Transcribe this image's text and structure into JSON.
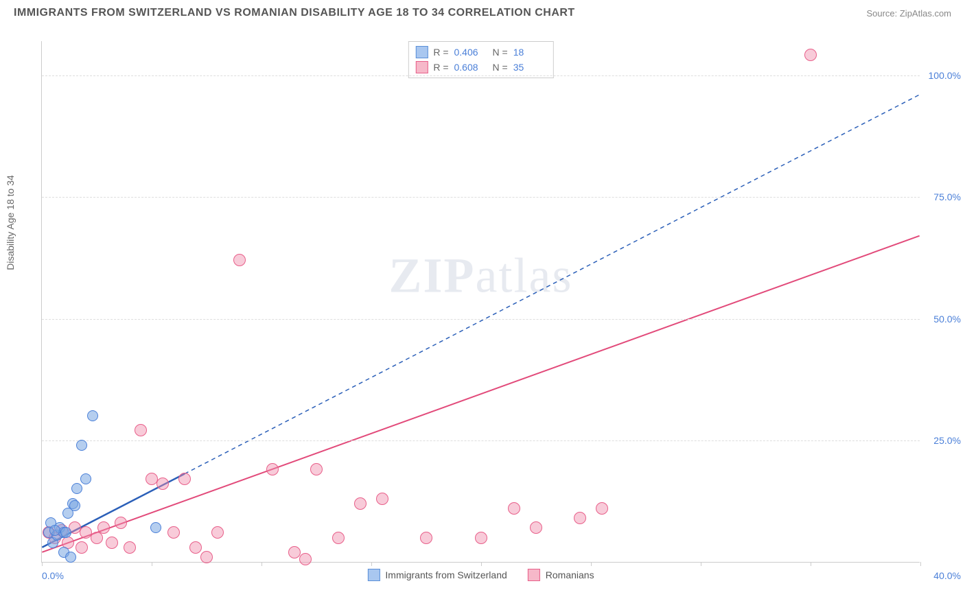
{
  "title": "IMMIGRANTS FROM SWITZERLAND VS ROMANIAN DISABILITY AGE 18 TO 34 CORRELATION CHART",
  "source": "Source: ZipAtlas.com",
  "ylabel": "Disability Age 18 to 34",
  "watermark_a": "ZIP",
  "watermark_b": "atlas",
  "axes": {
    "xlim": [
      0,
      40
    ],
    "ylim": [
      0,
      107
    ],
    "yticks": [
      25,
      50,
      75,
      100
    ],
    "ytick_labels": [
      "25.0%",
      "50.0%",
      "75.0%",
      "100.0%"
    ],
    "xtick_positions": [
      0,
      5,
      10,
      15,
      20,
      25,
      30,
      35,
      40
    ],
    "x_left_label": "0.0%",
    "x_right_label": "40.0%",
    "grid_color": "#dddddd",
    "axis_color": "#cccccc",
    "tick_label_color": "#4a7fd8"
  },
  "legend_top": {
    "rows": [
      {
        "swatch_fill": "#a9c7f0",
        "swatch_border": "#5a8fd8",
        "r_label": "R =",
        "r_val": "0.406",
        "n_label": "N =",
        "n_val": "18"
      },
      {
        "swatch_fill": "#f6b8c9",
        "swatch_border": "#e85e89",
        "r_label": "R =",
        "r_val": "0.608",
        "n_label": "N =",
        "n_val": "35"
      }
    ]
  },
  "legend_bottom": {
    "items": [
      {
        "swatch_fill": "#a9c7f0",
        "swatch_border": "#5a8fd8",
        "label": "Immigrants from Switzerland"
      },
      {
        "swatch_fill": "#f6b8c9",
        "swatch_border": "#e85e89",
        "label": "Romanians"
      }
    ]
  },
  "series": {
    "blue": {
      "fill": "rgba(120,165,225,0.55)",
      "stroke": "#4a7fd8",
      "radius": 8,
      "points": [
        [
          0.3,
          6
        ],
        [
          0.5,
          4
        ],
        [
          0.7,
          5.5
        ],
        [
          0.8,
          7
        ],
        [
          1.0,
          6
        ],
        [
          1.2,
          10
        ],
        [
          1.4,
          12
        ],
        [
          1.6,
          15
        ],
        [
          1.8,
          24
        ],
        [
          2.0,
          17
        ],
        [
          2.3,
          30
        ],
        [
          1.0,
          2
        ],
        [
          1.3,
          1
        ],
        [
          0.4,
          8
        ],
        [
          0.6,
          6.5
        ],
        [
          1.1,
          6
        ],
        [
          1.5,
          11.5
        ],
        [
          5.2,
          7
        ]
      ],
      "trend": {
        "color": "#2b5fb8",
        "solid_to_x": 6.5,
        "y0": 3,
        "y_at_40": 96,
        "dash": "6,5",
        "width": 2
      }
    },
    "pink": {
      "fill": "rgba(240,140,170,0.45)",
      "stroke": "#e85e89",
      "radius": 9,
      "points": [
        [
          0.3,
          6
        ],
        [
          0.6,
          5
        ],
        [
          0.9,
          6.5
        ],
        [
          1.2,
          4
        ],
        [
          1.5,
          7
        ],
        [
          1.8,
          3
        ],
        [
          2.0,
          6
        ],
        [
          2.5,
          5
        ],
        [
          2.8,
          7
        ],
        [
          3.2,
          4
        ],
        [
          3.6,
          8
        ],
        [
          4.0,
          3
        ],
        [
          4.5,
          27
        ],
        [
          5.0,
          17
        ],
        [
          5.5,
          16
        ],
        [
          6.0,
          6
        ],
        [
          6.5,
          17
        ],
        [
          7.0,
          3
        ],
        [
          7.5,
          1
        ],
        [
          8.0,
          6
        ],
        [
          9.0,
          62
        ],
        [
          10.5,
          19
        ],
        [
          11.5,
          2
        ],
        [
          12.0,
          0.5
        ],
        [
          12.5,
          19
        ],
        [
          13.5,
          5
        ],
        [
          14.5,
          12
        ],
        [
          15.5,
          13
        ],
        [
          17.5,
          5
        ],
        [
          20.0,
          5
        ],
        [
          21.5,
          11
        ],
        [
          22.5,
          7
        ],
        [
          24.5,
          9
        ],
        [
          25.5,
          11
        ],
        [
          35.0,
          104
        ]
      ],
      "trend": {
        "color": "#e24a7a",
        "y0": 2,
        "y_at_40": 67,
        "dash": "none",
        "width": 2
      }
    }
  }
}
